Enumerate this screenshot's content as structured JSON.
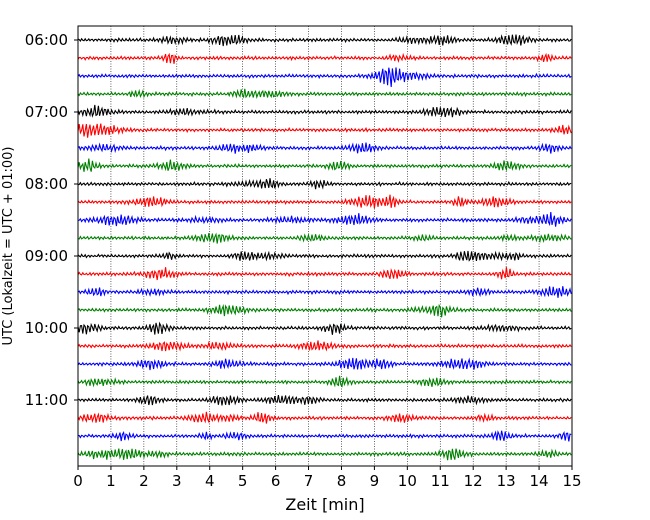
{
  "chart_data": {
    "type": "line",
    "title": "",
    "xlabel": "Zeit  [min]",
    "ylabel": "UTC (Lokalzeit = UTC + 01:00)",
    "xlim": [
      0,
      15
    ],
    "x_ticks": [
      "0",
      "1",
      "2",
      "3",
      "4",
      "5",
      "6",
      "7",
      "8",
      "9",
      "10",
      "11",
      "12",
      "13",
      "14",
      "15"
    ],
    "y_ticks": [
      "06:00",
      "07:00",
      "08:00",
      "09:00",
      "10:00",
      "11:00"
    ],
    "grid": "vertical dotted at each minute",
    "trace_interval_min": 15,
    "start_time": "06:00",
    "colors": [
      "#000000",
      "#ff0000",
      "#0000ff",
      "#008000"
    ],
    "traces": [
      {
        "label": "06:00",
        "color": "#000000"
      },
      {
        "label": "06:15",
        "color": "#ff0000"
      },
      {
        "label": "06:30",
        "color": "#0000ff"
      },
      {
        "label": "06:45",
        "color": "#008000"
      },
      {
        "label": "07:00",
        "color": "#000000"
      },
      {
        "label": "07:15",
        "color": "#ff0000"
      },
      {
        "label": "07:30",
        "color": "#0000ff"
      },
      {
        "label": "07:45",
        "color": "#008000"
      },
      {
        "label": "08:00",
        "color": "#000000"
      },
      {
        "label": "08:15",
        "color": "#ff0000"
      },
      {
        "label": "08:30",
        "color": "#0000ff"
      },
      {
        "label": "08:45",
        "color": "#008000"
      },
      {
        "label": "09:00",
        "color": "#000000"
      },
      {
        "label": "09:15",
        "color": "#ff0000"
      },
      {
        "label": "09:30",
        "color": "#0000ff"
      },
      {
        "label": "09:45",
        "color": "#008000"
      },
      {
        "label": "10:00",
        "color": "#000000"
      },
      {
        "label": "10:15",
        "color": "#ff0000"
      },
      {
        "label": "10:30",
        "color": "#0000ff"
      },
      {
        "label": "10:45",
        "color": "#008000"
      },
      {
        "label": "11:00",
        "color": "#000000"
      },
      {
        "label": "11:15",
        "color": "#ff0000"
      },
      {
        "label": "11:30",
        "color": "#0000ff"
      },
      {
        "label": "11:45",
        "color": "#008000"
      }
    ]
  }
}
